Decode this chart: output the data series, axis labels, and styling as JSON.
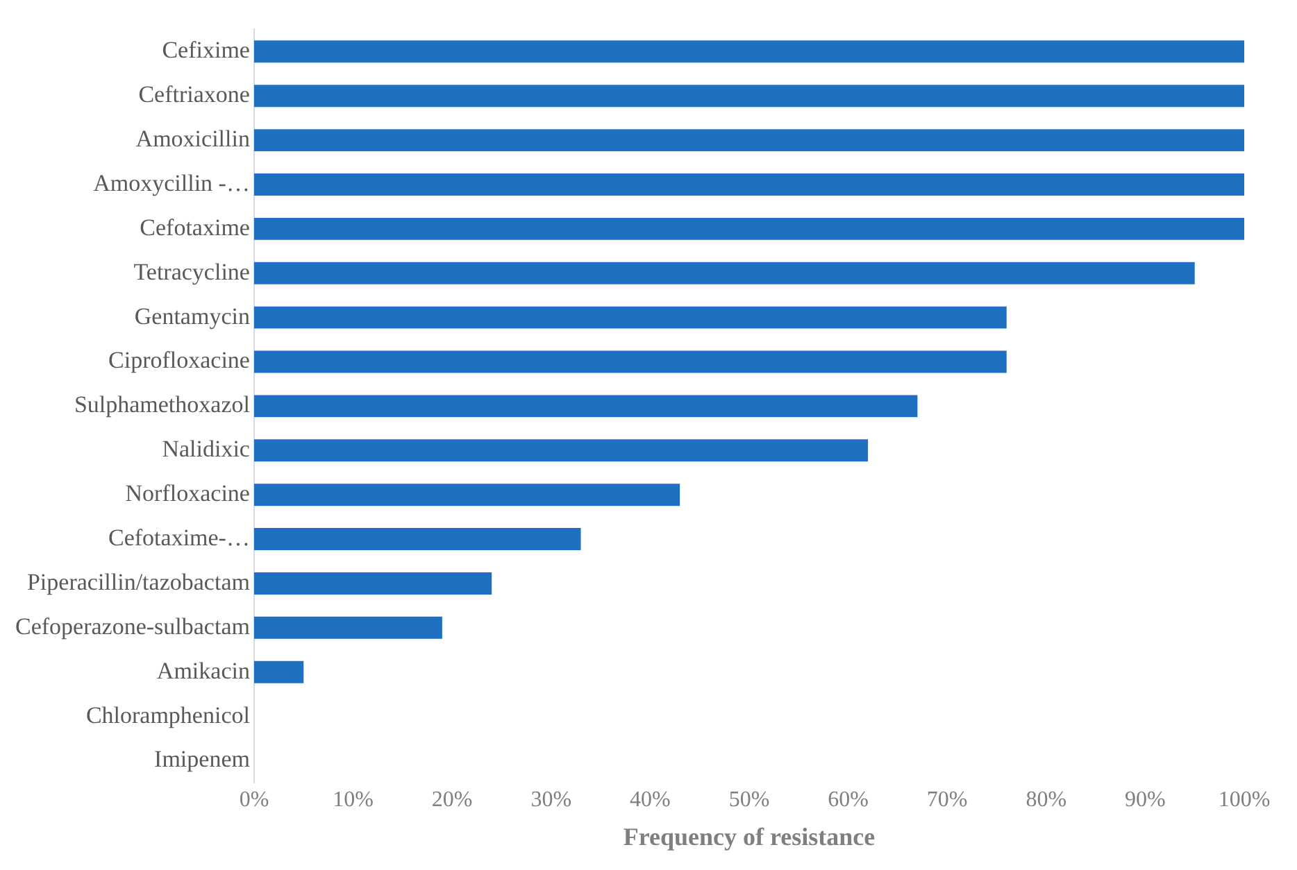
{
  "chart_data": {
    "type": "bar",
    "orientation": "horizontal",
    "xlabel": "Frequency of resistance",
    "categories": [
      "Cefixime",
      "Ceftriaxone",
      "Amoxicillin",
      "Amoxycillin -…",
      "Cefotaxime",
      "Tetracycline",
      "Gentamycin",
      "Ciprofloxacine",
      "Sulphamethoxazol",
      "Nalidixic",
      "Norfloxacine",
      "Cefotaxime-…",
      "Piperacillin/tazobactam",
      "Cefoperazone-sulbactam",
      "Amikacin",
      "Chloramphenicol",
      "Imipenem"
    ],
    "values": [
      100,
      100,
      100,
      100,
      100,
      95,
      76,
      76,
      67,
      62,
      43,
      33,
      24,
      19,
      5,
      0,
      0
    ],
    "color": "#1f70c1",
    "xlim": [
      0,
      100
    ],
    "xticks": [
      {
        "value": 0,
        "label": "0%"
      },
      {
        "value": 10,
        "label": "10%"
      },
      {
        "value": 20,
        "label": "20%"
      },
      {
        "value": 30,
        "label": "30%"
      },
      {
        "value": 40,
        "label": "40%"
      },
      {
        "value": 50,
        "label": "50%"
      },
      {
        "value": 60,
        "label": "60%"
      },
      {
        "value": 70,
        "label": "70%"
      },
      {
        "value": 80,
        "label": "80%"
      },
      {
        "value": 90,
        "label": "90%"
      },
      {
        "value": 100,
        "label": "100%"
      }
    ],
    "grid": false,
    "legend": false
  }
}
